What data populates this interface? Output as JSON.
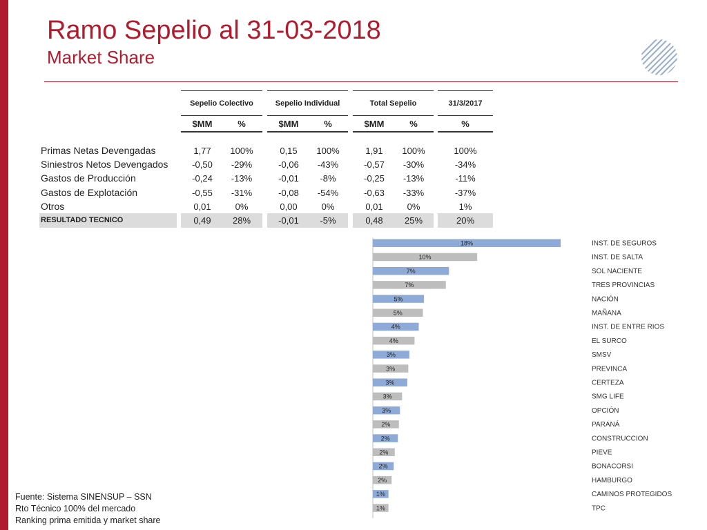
{
  "header": {
    "title": "Ramo Sepelio al 31-03-2018",
    "subtitle": "Market Share"
  },
  "table": {
    "groups": [
      "Sepelio Colectivo",
      "Sepelio Individual",
      "Total Sepelio",
      "31/3/2017"
    ],
    "subheaders": [
      "$MM",
      "%",
      "$MM",
      "%",
      "$MM",
      "%",
      "%"
    ],
    "rows": [
      {
        "label": "Primas Netas Devengadas",
        "values": [
          "1,77",
          "100%",
          "0,15",
          "100%",
          "1,91",
          "100%",
          "100%"
        ]
      },
      {
        "label": "Siniestros Netos Devengados",
        "values": [
          "-0,50",
          "-29%",
          "-0,06",
          "-43%",
          "-0,57",
          "-30%",
          "-34%"
        ]
      },
      {
        "label": "Gastos de Producción",
        "values": [
          "-0,24",
          "-13%",
          "-0,01",
          "-8%",
          "-0,25",
          "-13%",
          "-11%"
        ]
      },
      {
        "label": "Gastos de Explotación",
        "values": [
          "-0,55",
          "-31%",
          "-0,08",
          "-54%",
          "-0,63",
          "-33%",
          "-37%"
        ]
      },
      {
        "label": "Otros",
        "values": [
          "0,01",
          "0%",
          "0,00",
          "0%",
          "0,01",
          "0%",
          "1%"
        ]
      }
    ],
    "result": {
      "label": "RESULTADO TECNICO",
      "values": [
        "0,49",
        "28%",
        "-0,01",
        "-5%",
        "0,48",
        "25%",
        "20%"
      ]
    }
  },
  "chart_data": {
    "type": "bar",
    "orientation": "horizontal",
    "categories": [
      "INST. DE SEGUROS",
      "INST. DE SALTA",
      "SOL NACIENTE",
      "TRES PROVINCIAS",
      "NACIÓN",
      "MAÑANA",
      "INST. DE ENTRE RIOS",
      "EL SURCO",
      "SMSV",
      "PREVINCA",
      "CERTEZA",
      "SMG LIFE",
      "OPCIÓN",
      "PARANÁ",
      "CONSTRUCCION",
      "PIEVE",
      "BONACORSI",
      "HAMBURGO",
      "CAMINOS PROTEGIDOS",
      "TPC"
    ],
    "values": [
      18.0,
      10.0,
      7.3,
      7.0,
      4.9,
      4.8,
      4.4,
      4.0,
      3.5,
      3.4,
      3.3,
      2.8,
      2.6,
      2.5,
      2.4,
      2.1,
      2.0,
      1.8,
      1.5,
      1.5
    ],
    "data_labels": [
      "18%",
      "10%",
      "7%",
      "7%",
      "5%",
      "5%",
      "4%",
      "4%",
      "3%",
      "3%",
      "3%",
      "3%",
      "3%",
      "2%",
      "2%",
      "2%",
      "2%",
      "2%",
      "1%",
      "1%"
    ],
    "colors": {
      "odd": "#8eaad6",
      "even": "#bdbdbd"
    },
    "legend": "none",
    "grid": false
  },
  "footer": {
    "lines": [
      "Fuente: Sistema SINENSUP – SSN",
      "Rto Técnico 100% del mercado",
      "Ranking prima emitida y market share"
    ]
  }
}
